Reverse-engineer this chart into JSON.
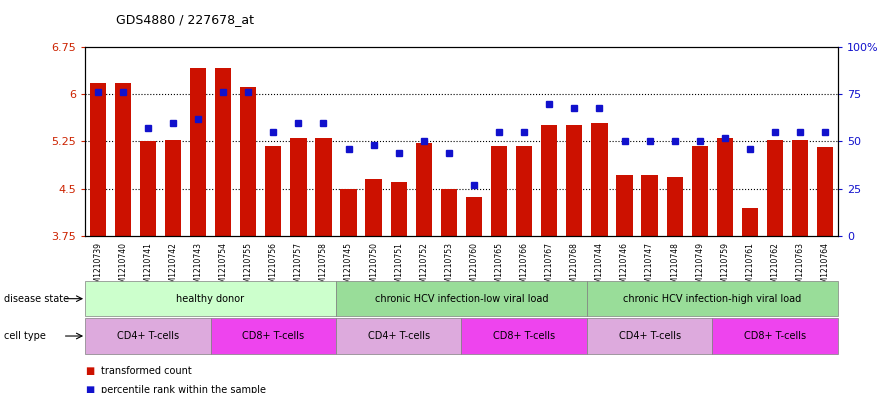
{
  "title": "GDS4880 / 227678_at",
  "samples": [
    "GSM1210739",
    "GSM1210740",
    "GSM1210741",
    "GSM1210742",
    "GSM1210743",
    "GSM1210754",
    "GSM1210755",
    "GSM1210756",
    "GSM1210757",
    "GSM1210758",
    "GSM1210745",
    "GSM1210750",
    "GSM1210751",
    "GSM1210752",
    "GSM1210753",
    "GSM1210760",
    "GSM1210765",
    "GSM1210766",
    "GSM1210767",
    "GSM1210768",
    "GSM1210744",
    "GSM1210746",
    "GSM1210747",
    "GSM1210748",
    "GSM1210749",
    "GSM1210759",
    "GSM1210761",
    "GSM1210762",
    "GSM1210763",
    "GSM1210764"
  ],
  "bar_values": [
    6.18,
    6.18,
    5.25,
    5.28,
    6.42,
    6.42,
    6.12,
    5.18,
    5.3,
    5.3,
    4.5,
    4.65,
    4.6,
    5.22,
    4.5,
    4.37,
    5.18,
    5.18,
    5.52,
    5.52,
    5.55,
    4.72,
    4.72,
    4.68,
    5.18,
    5.3,
    4.2,
    5.28,
    5.28,
    5.16
  ],
  "dot_values": [
    76,
    76,
    57,
    60,
    62,
    76,
    76,
    55,
    60,
    60,
    46,
    48,
    44,
    50,
    44,
    27,
    55,
    55,
    70,
    68,
    68,
    50,
    50,
    50,
    50,
    52,
    46,
    55,
    55,
    55
  ],
  "ylim_left": [
    3.75,
    6.75
  ],
  "ylim_right": [
    0,
    100
  ],
  "yticks_left": [
    3.75,
    4.5,
    5.25,
    6.0,
    6.75
  ],
  "yticks_right": [
    0,
    25,
    50,
    75,
    100
  ],
  "ytick_labels_left": [
    "3.75",
    "4.5",
    "5.25",
    "6",
    "6.75"
  ],
  "ytick_labels_right": [
    "0",
    "25",
    "50",
    "75",
    "100%"
  ],
  "hlines": [
    6.0,
    5.25,
    4.5
  ],
  "bar_color": "#cc1100",
  "dot_color": "#1111cc",
  "disease_groups": [
    {
      "label": "healthy donor",
      "start": 0,
      "end": 9,
      "color": "#ccffcc"
    },
    {
      "label": "chronic HCV infection-low viral load",
      "start": 10,
      "end": 19,
      "color": "#99dd99"
    },
    {
      "label": "chronic HCV infection-high viral load",
      "start": 20,
      "end": 29,
      "color": "#99dd99"
    }
  ],
  "cell_groups": [
    {
      "label": "CD4+ T-cells",
      "start": 0,
      "end": 4,
      "color": "#ddaadd"
    },
    {
      "label": "CD8+ T-cells",
      "start": 5,
      "end": 9,
      "color": "#ee44ee"
    },
    {
      "label": "CD4+ T-cells",
      "start": 10,
      "end": 14,
      "color": "#ddaadd"
    },
    {
      "label": "CD8+ T-cells",
      "start": 15,
      "end": 19,
      "color": "#ee44ee"
    },
    {
      "label": "CD4+ T-cells",
      "start": 20,
      "end": 24,
      "color": "#ddaadd"
    },
    {
      "label": "CD8+ T-cells",
      "start": 25,
      "end": 29,
      "color": "#ee44ee"
    }
  ],
  "disease_state_label": "disease state",
  "cell_type_label": "cell type",
  "legend_bar_label": "transformed count",
  "legend_dot_label": "percentile rank within the sample",
  "bar_width": 0.65
}
